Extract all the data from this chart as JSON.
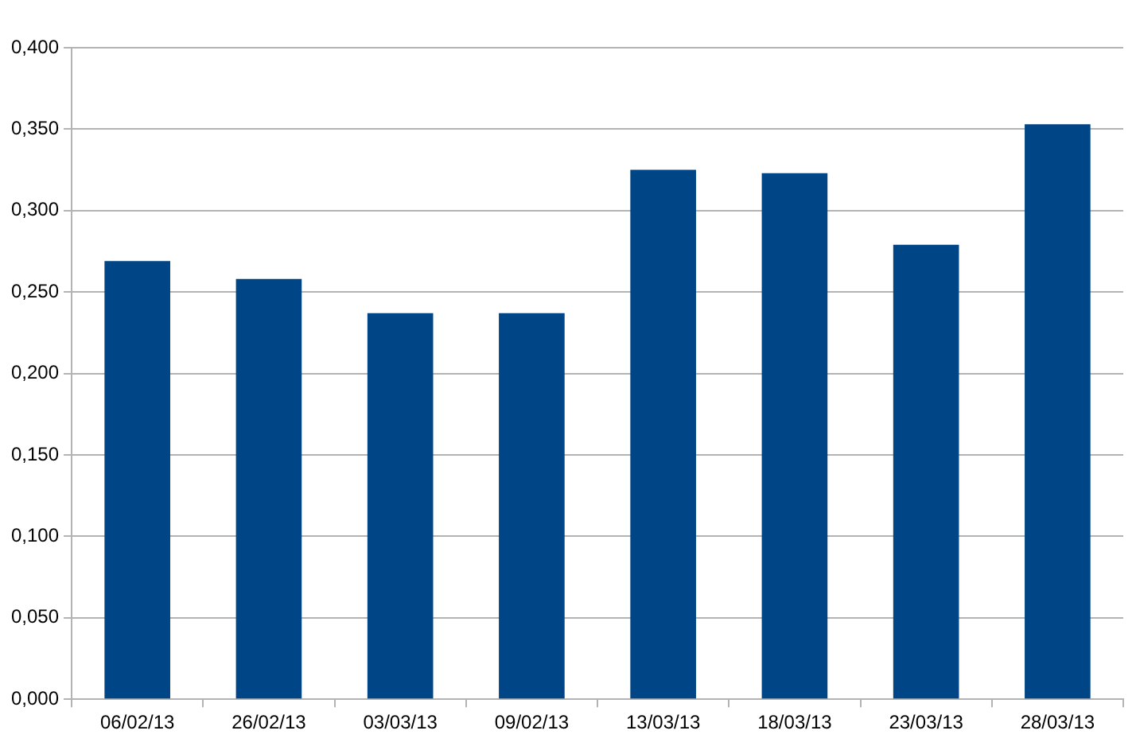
{
  "chart_data": {
    "type": "bar",
    "categories": [
      "06/02/13",
      "26/02/13",
      "03/03/13",
      "09/02/13",
      "13/03/13",
      "18/03/13",
      "23/03/13",
      "28/03/13"
    ],
    "values": [
      0.269,
      0.258,
      0.237,
      0.237,
      0.325,
      0.323,
      0.279,
      0.353
    ],
    "color": "#004586",
    "ylim": [
      0,
      0.4
    ],
    "yticks": [
      {
        "value": 0,
        "label": "0,000"
      },
      {
        "value": 0.05,
        "label": "0,050"
      },
      {
        "value": 0.1,
        "label": "0,100"
      },
      {
        "value": 0.15,
        "label": "0,150"
      },
      {
        "value": 0.2,
        "label": "0,200"
      },
      {
        "value": 0.25,
        "label": "0,250"
      },
      {
        "value": 0.3,
        "label": "0,300"
      },
      {
        "value": 0.35,
        "label": "0,350"
      },
      {
        "value": 0.4,
        "label": "0,400"
      }
    ],
    "grid": "y",
    "legend": false
  }
}
